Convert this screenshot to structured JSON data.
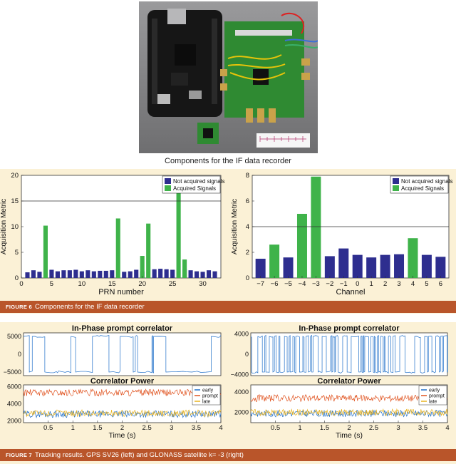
{
  "photo": {
    "caption": "Components for the IF data recorder"
  },
  "figure6": {
    "label": "FIGURE 6",
    "caption": "Components for the IF data recorder"
  },
  "figure7": {
    "label": "FIGURE 7",
    "caption": "Tracking results. GPS SV26 (left) and GLONASS satellite k= -3 (right)"
  },
  "colors": {
    "not_acquired": "#2e2e8f",
    "acquired": "#3fb34a",
    "inphase": "#1f6fc9",
    "early": "#1f6fc9",
    "prompt": "#e0521e",
    "late": "#e8b21e",
    "caption_bar": "#b9552a",
    "panel": "#fbf1d6"
  },
  "chart_data": [
    {
      "type": "bar",
      "xlabel": "PRN number",
      "ylabel": "Acquisition Metric",
      "xlim": [
        0,
        33
      ],
      "ylim": [
        0,
        20
      ],
      "xticks": [
        0,
        5,
        10,
        15,
        20,
        25,
        30
      ],
      "yticks": [
        0,
        5,
        10,
        15,
        20
      ],
      "threshold": 15,
      "legend": [
        "Not acquired signals",
        "Acquired Signals"
      ],
      "legend_position": "top-right",
      "series": [
        {
          "name": "Not acquired signals",
          "x": [
            1,
            2,
            3,
            5,
            6,
            7,
            8,
            9,
            10,
            11,
            12,
            13,
            14,
            15,
            17,
            18,
            19,
            20,
            22,
            23,
            24,
            25,
            27,
            28,
            29,
            30,
            31,
            32
          ],
          "values": [
            1.1,
            1.5,
            1.2,
            1.6,
            1.3,
            1.5,
            1.5,
            1.6,
            1.3,
            1.5,
            1.3,
            1.4,
            1.4,
            1.5,
            1.2,
            1.3,
            1.6,
            1.3,
            1.7,
            1.8,
            1.7,
            1.6,
            1.7,
            1.5,
            1.3,
            1.2,
            1.5,
            1.3
          ]
        },
        {
          "name": "Acquired Signals",
          "x": [
            4,
            16,
            20,
            21,
            26,
            27
          ],
          "values": [
            10.2,
            11.6,
            4.3,
            10.6,
            19.6,
            3.6
          ]
        }
      ]
    },
    {
      "type": "bar",
      "xlabel": "Channel",
      "ylabel": "Acquisition Metric",
      "xlim": [
        -7.6,
        6.6
      ],
      "ylim": [
        0,
        8
      ],
      "xticks": [
        -7,
        -6,
        -5,
        -4,
        -3,
        -2,
        -1,
        0,
        1,
        2,
        3,
        4,
        5,
        6
      ],
      "yticks": [
        0,
        2,
        4,
        6,
        8
      ],
      "threshold": 4,
      "legend": [
        "Not acquired signals",
        "Acquired Signals"
      ],
      "legend_position": "top-right",
      "series": [
        {
          "name": "Not acquired signals",
          "x": [
            -7,
            -5,
            -2,
            -1,
            0,
            1,
            2,
            3,
            5,
            6
          ],
          "values": [
            1.5,
            1.6,
            1.7,
            2.3,
            1.8,
            1.6,
            1.8,
            1.85,
            1.8,
            1.65
          ]
        },
        {
          "name": "Acquired Signals",
          "x": [
            -6,
            -4,
            -3,
            4
          ],
          "values": [
            2.6,
            5.0,
            7.9,
            3.1
          ]
        }
      ]
    },
    {
      "type": "line",
      "title": "In-Phase prompt correlator",
      "xlim": [
        0,
        4
      ],
      "ylim": [
        -6000,
        6000
      ],
      "yticks": [
        -5000,
        0,
        5000
      ],
      "amplitude": 5000,
      "series": [
        {
          "name": "In-Phase prompt",
          "level": 5000
        }
      ]
    },
    {
      "type": "line",
      "title": "Correlator Power",
      "xlabel": "Time (s)",
      "xlim": [
        0,
        4
      ],
      "ylim": [
        1800,
        6200
      ],
      "xticks": [
        0.5,
        1,
        1.5,
        2,
        2.5,
        3,
        3.5,
        4
      ],
      "yticks": [
        2000,
        4000,
        6000
      ],
      "legend_position": "top-right",
      "series": [
        {
          "name": "early",
          "mean": 2800
        },
        {
          "name": "prompt",
          "mean": 5300
        },
        {
          "name": "late",
          "mean": 2900
        }
      ]
    },
    {
      "type": "line",
      "title": "In-Phase prompt correlator",
      "xlim": [
        0,
        4
      ],
      "ylim": [
        -4200,
        4200
      ],
      "yticks": [
        -4000,
        0,
        4000
      ],
      "amplitude": 3500,
      "series": [
        {
          "name": "In-Phase prompt",
          "level": 3500
        }
      ]
    },
    {
      "type": "line",
      "title": "Correlator Power",
      "xlabel": "Time (s)",
      "xlim": [
        0,
        4
      ],
      "ylim": [
        1000,
        4700
      ],
      "xticks": [
        0.5,
        1,
        1.5,
        2,
        2.5,
        3,
        3.5,
        4
      ],
      "yticks": [
        2000,
        4000
      ],
      "legend_position": "top-right",
      "series": [
        {
          "name": "early",
          "mean": 1900
        },
        {
          "name": "prompt",
          "mean": 3400
        },
        {
          "name": "late",
          "mean": 2000
        }
      ]
    }
  ]
}
